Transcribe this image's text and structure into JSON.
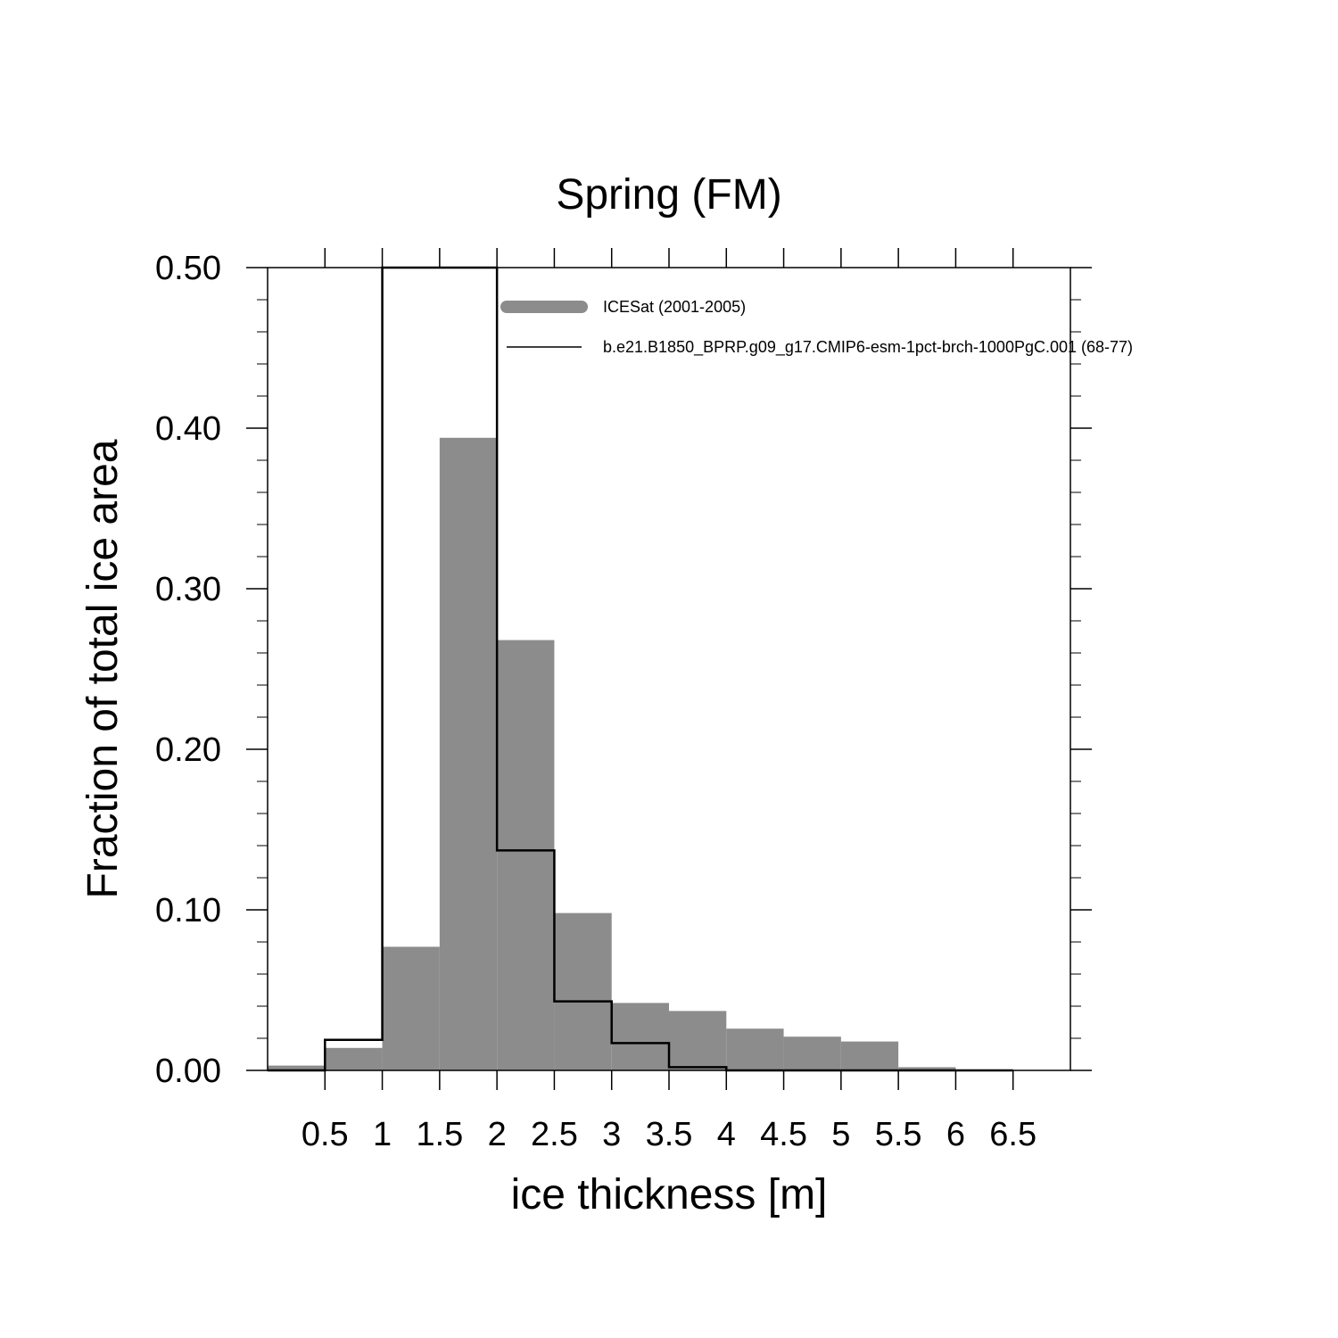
{
  "chart_data": {
    "type": "bar",
    "title": "Spring (FM)",
    "xlabel": "ice thickness [m]",
    "ylabel": "Fraction of total ice area",
    "xlim": [
      0,
      7
    ],
    "ylim": [
      0,
      0.5
    ],
    "xticks": [
      "0.5",
      "1",
      "1.5",
      "2",
      "2.5",
      "3",
      "3.5",
      "4",
      "4.5",
      "5",
      "5.5",
      "6",
      "6.5"
    ],
    "yticks": [
      "0.00",
      "0.10",
      "0.20",
      "0.30",
      "0.40",
      "0.50"
    ],
    "bin_edges": [
      0,
      0.5,
      1,
      1.5,
      2,
      2.5,
      3,
      3.5,
      4,
      4.5,
      5,
      5.5,
      6,
      6.5
    ],
    "series": [
      {
        "name": "ICESat (2001-2005)",
        "style": "filled-bars",
        "color": "#8c8c8c",
        "values": [
          0.003,
          0.014,
          0.077,
          0.394,
          0.268,
          0.098,
          0.042,
          0.037,
          0.026,
          0.021,
          0.018,
          0.002,
          0.0
        ]
      },
      {
        "name": "b.e21.B1850_BPRP.g09_g17.CMIP6-esm-1pct-brch-1000PgC.001 (68-77)",
        "style": "step-line",
        "color": "#000000",
        "values": [
          0.0,
          0.019,
          0.5,
          0.5,
          0.137,
          0.043,
          0.017,
          0.002,
          0.0,
          0.0,
          0.0,
          0.0,
          0.0
        ]
      }
    ],
    "legend": {
      "placement": "top-right",
      "entries": [
        "ICESat (2001-2005)",
        "b.e21.B1850_BPRP.g09_g17.CMIP6-esm-1pct-brch-1000PgC.001 (68-77)"
      ]
    }
  }
}
